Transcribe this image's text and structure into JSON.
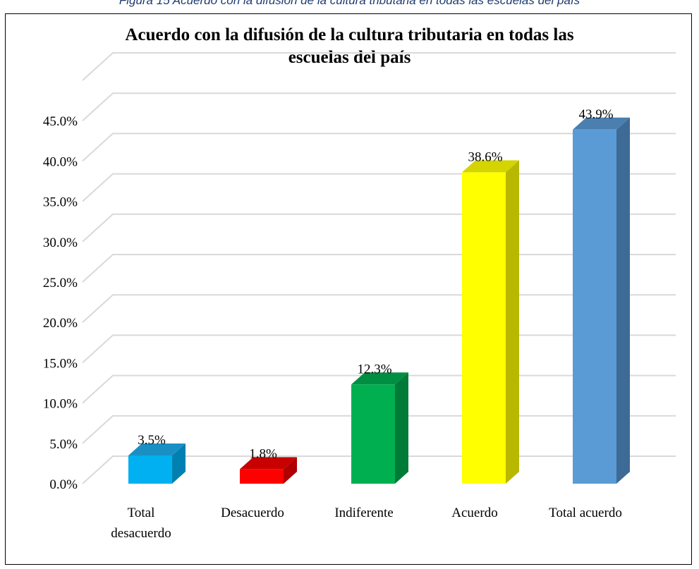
{
  "figure_caption": "Figura 15 Acuerdo con la difusión de la cultura tributaria en todas las escuelas del país",
  "chart_data": {
    "type": "bar",
    "title_line1": "Acuerdo con la difusión de la cultura tributaria en todas las",
    "title_line2": "escuelas del país",
    "categories": [
      "Total desacuerdo",
      "Desacuerdo",
      "Indiferente",
      "Acuerdo",
      "Total acuerdo"
    ],
    "category_lines": [
      [
        "Total",
        "desacuerdo"
      ],
      [
        "Desacuerdo"
      ],
      [
        "Indiferente"
      ],
      [
        "Acuerdo"
      ],
      [
        "Total acuerdo"
      ]
    ],
    "values": [
      3.5,
      1.8,
      12.3,
      38.6,
      43.9
    ],
    "data_labels": [
      "3.5%",
      "1.8%",
      "12.3%",
      "38.6%",
      "43.9%"
    ],
    "colors": [
      "#00b0f0",
      "#ff0000",
      "#00b050",
      "#ffff00",
      "#5b9bd5"
    ],
    "side_colors": [
      "#0080b0",
      "#b00000",
      "#007a37",
      "#b8b800",
      "#3e6a96"
    ],
    "top_colors": [
      "#1a8fc4",
      "#c80000",
      "#008f42",
      "#d4d400",
      "#4a7fb0"
    ],
    "yticks": [
      "0.0%",
      "5.0%",
      "10.0%",
      "15.0%",
      "20.0%",
      "25.0%",
      "30.0%",
      "35.0%",
      "40.0%",
      "45.0%"
    ],
    "ylim": [
      0,
      45
    ],
    "grid": true,
    "legend": "none"
  }
}
